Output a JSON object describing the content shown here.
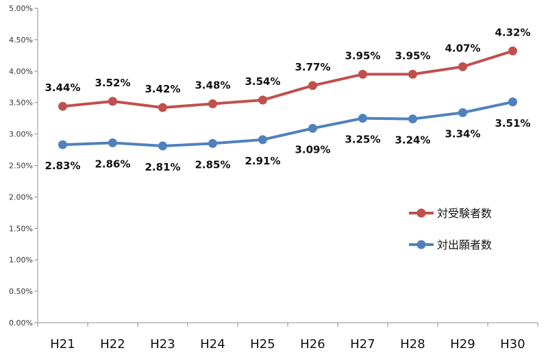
{
  "chart_data": {
    "type": "line",
    "categories": [
      "H21",
      "H22",
      "H23",
      "H24",
      "H25",
      "H26",
      "H27",
      "H28",
      "H29",
      "H30"
    ],
    "y_ticks": [
      "0.00%",
      "0.50%",
      "1.00%",
      "1.50%",
      "2.00%",
      "2.50%",
      "3.00%",
      "3.50%",
      "4.00%",
      "4.50%",
      "5.00%"
    ],
    "ylim": [
      0,
      5
    ],
    "series": [
      {
        "name": "対受験者数",
        "color": "#c0504d",
        "values": [
          3.44,
          3.52,
          3.42,
          3.48,
          3.54,
          3.77,
          3.95,
          3.95,
          4.07,
          4.32
        ],
        "labels": [
          "3.44%",
          "3.52%",
          "3.42%",
          "3.48%",
          "3.54%",
          "3.77%",
          "3.95%",
          "3.95%",
          "4.07%",
          "4.32%"
        ]
      },
      {
        "name": "対出願者数",
        "color": "#4f81bd",
        "values": [
          2.83,
          2.86,
          2.81,
          2.85,
          2.91,
          3.09,
          3.25,
          3.24,
          3.34,
          3.51
        ],
        "labels": [
          "2.83%",
          "2.86%",
          "2.81%",
          "2.85%",
          "2.91%",
          "3.09%",
          "3.25%",
          "3.24%",
          "3.34%",
          "3.51%"
        ]
      }
    ],
    "legend_position": "right",
    "grid": false
  }
}
